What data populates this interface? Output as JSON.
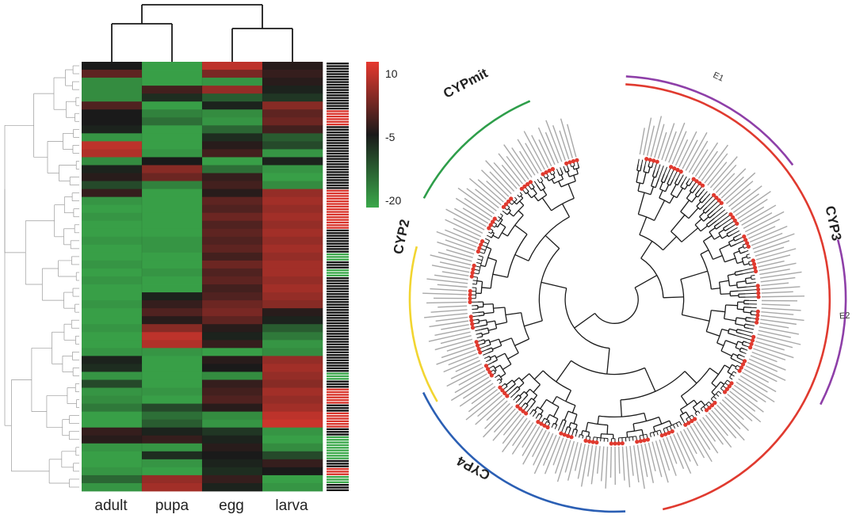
{
  "chart_data": [
    {
      "type": "heatmap",
      "title": "",
      "xlabel": "",
      "ylabel": "",
      "columns": [
        "adult",
        "pupa",
        "egg",
        "larva"
      ],
      "colorbar": {
        "ticks": [
          "10",
          "-5",
          "-20"
        ],
        "range": [
          -20,
          10
        ],
        "low_color": "#3aa84a",
        "mid_color": "#1a1a1a",
        "high_color": "#e6392f"
      },
      "row_label_colors": {
        "black": "#111111",
        "red": "#d9342b",
        "green": "#3aa84a"
      },
      "rows": [
        {
          "v": [
            -5,
            -19,
            7,
            -4
          ],
          "c": "k"
        },
        {
          "v": [
            0,
            -19,
            2,
            -3
          ],
          "c": "k"
        },
        {
          "v": [
            -17,
            -19,
            -18,
            -4
          ],
          "c": "k"
        },
        {
          "v": [
            -17,
            -2,
            4,
            -6
          ],
          "c": "k"
        },
        {
          "v": [
            -17,
            -7,
            -12,
            -8
          ],
          "c": "k"
        },
        {
          "v": [
            -1,
            -19,
            -6,
            3
          ],
          "c": "k"
        },
        {
          "v": [
            -5,
            -16,
            -17,
            0
          ],
          "c": "r"
        },
        {
          "v": [
            -5,
            -14,
            -18,
            1
          ],
          "c": "r"
        },
        {
          "v": [
            -6,
            -19,
            -13,
            -2
          ],
          "c": "k"
        },
        {
          "v": [
            -18,
            -19,
            -7,
            -12
          ],
          "c": "k"
        },
        {
          "v": [
            7,
            -19,
            -4,
            -10
          ],
          "c": "k"
        },
        {
          "v": [
            6,
            -18,
            -2,
            -18
          ],
          "c": "k"
        },
        {
          "v": [
            -17,
            -5,
            -19,
            -6
          ],
          "c": "k"
        },
        {
          "v": [
            -6,
            3,
            -14,
            -18
          ],
          "c": "k"
        },
        {
          "v": [
            -4,
            1,
            -3,
            -19
          ],
          "c": "k"
        },
        {
          "v": [
            -10,
            -16,
            -2,
            -17
          ],
          "c": "k"
        },
        {
          "v": [
            -3,
            -19,
            -4,
            4
          ],
          "c": "r"
        },
        {
          "v": [
            -18,
            -19,
            0,
            5
          ],
          "c": "r"
        },
        {
          "v": [
            -19,
            -19,
            -1,
            4
          ],
          "c": "r"
        },
        {
          "v": [
            -18,
            -19,
            1,
            5
          ],
          "c": "r"
        },
        {
          "v": [
            -19,
            -19,
            -1,
            4
          ],
          "c": "r"
        },
        {
          "v": [
            -19,
            -19,
            0,
            5
          ],
          "c": "k"
        },
        {
          "v": [
            -18,
            -18,
            -1,
            4
          ],
          "c": "k"
        },
        {
          "v": [
            -19,
            -18,
            0,
            5
          ],
          "c": "k"
        },
        {
          "v": [
            -19,
            -19,
            -2,
            4
          ],
          "c": "g"
        },
        {
          "v": [
            -18,
            -19,
            1,
            5
          ],
          "c": "k"
        },
        {
          "v": [
            -19,
            -18,
            -1,
            5
          ],
          "c": "g"
        },
        {
          "v": [
            -18,
            -19,
            0,
            4
          ],
          "c": "k"
        },
        {
          "v": [
            -19,
            -19,
            -2,
            5
          ],
          "c": "k"
        },
        {
          "v": [
            -19,
            -6,
            -1,
            4
          ],
          "c": "k"
        },
        {
          "v": [
            -18,
            -3,
            1,
            3
          ],
          "c": "k"
        },
        {
          "v": [
            -19,
            -1,
            2,
            -4
          ],
          "c": "k"
        },
        {
          "v": [
            -19,
            -4,
            0,
            -6
          ],
          "c": "k"
        },
        {
          "v": [
            -18,
            3,
            -4,
            -12
          ],
          "c": "k"
        },
        {
          "v": [
            -19,
            7,
            -6,
            -15
          ],
          "c": "k"
        },
        {
          "v": [
            -19,
            6,
            -3,
            -18
          ],
          "c": "k"
        },
        {
          "v": [
            -18,
            -18,
            -19,
            -17
          ],
          "c": "k"
        },
        {
          "v": [
            -6,
            -19,
            -4,
            4
          ],
          "c": "k"
        },
        {
          "v": [
            -7,
            -19,
            -5,
            5
          ],
          "c": "k"
        },
        {
          "v": [
            -18,
            -19,
            -17,
            4
          ],
          "c": "g"
        },
        {
          "v": [
            -10,
            -19,
            -3,
            3
          ],
          "c": "k"
        },
        {
          "v": [
            -18,
            -18,
            -2,
            5
          ],
          "c": "r"
        },
        {
          "v": [
            -17,
            -19,
            -1,
            4
          ],
          "c": "r"
        },
        {
          "v": [
            -15,
            -10,
            -4,
            5
          ],
          "c": "k"
        },
        {
          "v": [
            -19,
            -14,
            -17,
            7
          ],
          "c": "r"
        },
        {
          "v": [
            -19,
            -12,
            -18,
            8
          ],
          "c": "r"
        },
        {
          "v": [
            -3,
            -6,
            -8,
            -18
          ],
          "c": "k"
        },
        {
          "v": [
            -4,
            -3,
            -6,
            -19
          ],
          "c": "g"
        },
        {
          "v": [
            -18,
            -18,
            -4,
            -17
          ],
          "c": "g"
        },
        {
          "v": [
            -19,
            -7,
            -5,
            -10
          ],
          "c": "g"
        },
        {
          "v": [
            -19,
            -18,
            -6,
            -3
          ],
          "c": "k"
        },
        {
          "v": [
            -18,
            -19,
            -7,
            -5
          ],
          "c": "r"
        },
        {
          "v": [
            -13,
            4,
            -3,
            -19
          ],
          "c": "g"
        },
        {
          "v": [
            -18,
            5,
            -6,
            -18
          ],
          "c": "k"
        }
      ]
    },
    {
      "type": "tree",
      "title": "",
      "clades": [
        {
          "name": "CYPmit",
          "color": "#2e9e4a"
        },
        {
          "name": "CYP2",
          "color": "#f2d531"
        },
        {
          "name": "CYP4",
          "color": "#2b5fb4"
        },
        {
          "name": "CYP3",
          "color": "#e03a2f"
        }
      ],
      "subclades": [
        {
          "name": "E1",
          "color": "#8e3fa8"
        },
        {
          "name": "E2",
          "color": "#8e3fa8"
        }
      ],
      "marker_color": "#e03a2f",
      "leaf_label_color": "#a8a8a8"
    }
  ]
}
